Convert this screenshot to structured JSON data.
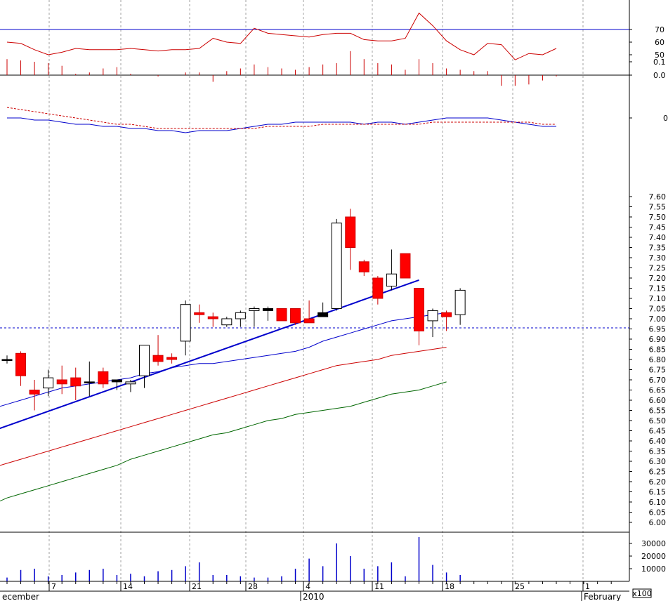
{
  "chart_data": [
    {
      "panel": "oscillator",
      "type": "line",
      "overbought_level": 70,
      "y_ticks": [
        "70",
        "60",
        "50"
      ],
      "series": [
        {
          "values": [
            60,
            59,
            54,
            50,
            52,
            55,
            54,
            54,
            54,
            55,
            54,
            53,
            54,
            54,
            55,
            63,
            60,
            59,
            71,
            67,
            66,
            65,
            64,
            66,
            67,
            67,
            62,
            61,
            61,
            63,
            83,
            73,
            61,
            54,
            50,
            59,
            58,
            46,
            51,
            50,
            55
          ],
          "color": "#cc0000"
        }
      ]
    },
    {
      "panel": "histogram",
      "type": "bar",
      "y_ticks": [
        "0.1",
        "0.0"
      ],
      "values": [
        0.12,
        0.11,
        0.1,
        0.09,
        0.07,
        0.01,
        0.02,
        0.05,
        0.06,
        0.01,
        0.0,
        -0.01,
        0.0,
        0.02,
        0.02,
        -0.05,
        0.03,
        0.05,
        0.08,
        0.06,
        0.05,
        0.04,
        0.06,
        0.08,
        0.09,
        0.18,
        0.12,
        0.09,
        0.08,
        0.04,
        0.12,
        0.09,
        0.05,
        0.04,
        0.03,
        0.03,
        -0.08,
        -0.08,
        -0.07,
        -0.04,
        -0.01
      ],
      "color": "#cc0000"
    },
    {
      "panel": "macd",
      "type": "line",
      "y_ticks": [
        "0.1"
      ],
      "series": [
        {
          "values": [
            0.1,
            0.1,
            0.09,
            0.09,
            0.08,
            0.07,
            0.07,
            0.06,
            0.06,
            0.05,
            0.05,
            0.04,
            0.04,
            0.03,
            0.04,
            0.04,
            0.04,
            0.05,
            0.06,
            0.07,
            0.07,
            0.08,
            0.08,
            0.08,
            0.08,
            0.08,
            0.07,
            0.08,
            0.08,
            0.07,
            0.08,
            0.09,
            0.1,
            0.1,
            0.1,
            0.1,
            0.09,
            0.08,
            0.07,
            0.06,
            0.06
          ],
          "color": "#0000cc",
          "style": "solid"
        },
        {
          "values": [
            0.15,
            0.14,
            0.13,
            0.12,
            0.11,
            0.1,
            0.09,
            0.08,
            0.07,
            0.07,
            0.06,
            0.05,
            0.05,
            0.05,
            0.05,
            0.05,
            0.05,
            0.05,
            0.05,
            0.06,
            0.06,
            0.06,
            0.06,
            0.07,
            0.07,
            0.07,
            0.07,
            0.07,
            0.07,
            0.07,
            0.07,
            0.08,
            0.08,
            0.08,
            0.08,
            0.08,
            0.08,
            0.08,
            0.08,
            0.07,
            0.07
          ],
          "color": "#cc0000",
          "style": "dashed"
        }
      ]
    },
    {
      "panel": "price",
      "type": "candlestick",
      "y_ticks": [
        "7.60",
        "7.55",
        "7.50",
        "7.45",
        "7.40",
        "7.35",
        "7.30",
        "7.25",
        "7.20",
        "7.15",
        "7.10",
        "7.05",
        "7.00",
        "6.95",
        "6.90",
        "6.85",
        "6.80",
        "6.75",
        "6.70",
        "6.65",
        "6.60",
        "6.55",
        "6.50",
        "6.45",
        "6.40",
        "6.35",
        "6.30",
        "6.25",
        "6.20",
        "6.15",
        "6.10",
        "6.05",
        "6.00"
      ],
      "ylim": [
        5.955,
        7.655
      ],
      "reference_level": 6.955,
      "candles": [
        {
          "o": 6.8,
          "h": 6.82,
          "l": 6.78,
          "c": 6.8,
          "color": "black"
        },
        {
          "o": 6.83,
          "h": 6.84,
          "l": 6.67,
          "c": 6.72,
          "color": "red"
        },
        {
          "o": 6.65,
          "h": 6.7,
          "l": 6.55,
          "c": 6.63,
          "color": "red"
        },
        {
          "o": 6.66,
          "h": 6.75,
          "l": 6.62,
          "c": 6.71,
          "color": "white"
        },
        {
          "o": 6.7,
          "h": 6.77,
          "l": 6.63,
          "c": 6.68,
          "color": "red"
        },
        {
          "o": 6.71,
          "h": 6.76,
          "l": 6.6,
          "c": 6.67,
          "color": "red"
        },
        {
          "o": 6.69,
          "h": 6.79,
          "l": 6.62,
          "c": 6.69,
          "color": "black"
        },
        {
          "o": 6.74,
          "h": 6.76,
          "l": 6.66,
          "c": 6.68,
          "color": "red"
        },
        {
          "o": 6.7,
          "h": 6.7,
          "l": 6.65,
          "c": 6.69,
          "color": "black"
        },
        {
          "o": 6.68,
          "h": 6.7,
          "l": 6.64,
          "c": 6.69,
          "color": "white"
        },
        {
          "o": 6.72,
          "h": 6.87,
          "l": 6.66,
          "c": 6.87,
          "color": "white"
        },
        {
          "o": 6.82,
          "h": 6.92,
          "l": 6.77,
          "c": 6.79,
          "color": "red"
        },
        {
          "o": 6.81,
          "h": 6.83,
          "l": 6.78,
          "c": 6.8,
          "color": "red"
        },
        {
          "o": 6.89,
          "h": 7.09,
          "l": 6.82,
          "c": 7.07,
          "color": "white"
        },
        {
          "o": 7.03,
          "h": 7.07,
          "l": 6.98,
          "c": 7.02,
          "color": "red"
        },
        {
          "o": 7.01,
          "h": 7.03,
          "l": 6.96,
          "c": 7.0,
          "color": "red"
        },
        {
          "o": 6.97,
          "h": 7.01,
          "l": 6.96,
          "c": 7.0,
          "color": "white"
        },
        {
          "o": 7.0,
          "h": 7.04,
          "l": 6.96,
          "c": 7.03,
          "color": "white"
        },
        {
          "o": 7.04,
          "h": 7.06,
          "l": 6.96,
          "c": 7.05,
          "color": "white"
        },
        {
          "o": 7.05,
          "h": 7.06,
          "l": 6.99,
          "c": 7.04,
          "color": "black"
        },
        {
          "o": 7.05,
          "h": 7.05,
          "l": 7.0,
          "c": 6.99,
          "color": "red"
        },
        {
          "o": 7.05,
          "h": 7.05,
          "l": 6.97,
          "c": 6.98,
          "color": "red"
        },
        {
          "o": 7.0,
          "h": 7.09,
          "l": 6.98,
          "c": 6.98,
          "color": "red"
        },
        {
          "o": 7.01,
          "h": 7.08,
          "l": 7.01,
          "c": 7.03,
          "color": "black"
        },
        {
          "o": 7.05,
          "h": 7.49,
          "l": 7.04,
          "c": 7.47,
          "color": "white"
        },
        {
          "o": 7.5,
          "h": 7.54,
          "l": 7.24,
          "c": 7.35,
          "color": "red"
        },
        {
          "o": 7.28,
          "h": 7.29,
          "l": 7.21,
          "c": 7.23,
          "color": "red"
        },
        {
          "o": 7.2,
          "h": 7.21,
          "l": 7.07,
          "c": 7.1,
          "color": "red"
        },
        {
          "o": 7.16,
          "h": 7.34,
          "l": 7.14,
          "c": 7.22,
          "color": "white"
        },
        {
          "o": 7.32,
          "h": 7.32,
          "l": 7.2,
          "c": 7.2,
          "color": "red"
        },
        {
          "o": 7.15,
          "h": 7.15,
          "l": 6.87,
          "c": 6.94,
          "color": "red"
        },
        {
          "o": 6.99,
          "h": 7.05,
          "l": 6.91,
          "c": 7.04,
          "color": "white"
        },
        {
          "o": 7.03,
          "h": 7.04,
          "l": 6.94,
          "c": 7.01,
          "color": "red"
        },
        {
          "o": 7.02,
          "h": 7.15,
          "l": 6.97,
          "c": 7.14,
          "color": "white"
        }
      ],
      "candle_slots": [
        0,
        1,
        2,
        3,
        4,
        5,
        6,
        7,
        8,
        9,
        10,
        11,
        12,
        13,
        14,
        15,
        16,
        17,
        18,
        19,
        20,
        21,
        22,
        23,
        24,
        25,
        26,
        27,
        28,
        29,
        30,
        31,
        32,
        33
      ],
      "series": [
        {
          "values": [
            6.56,
            6.58,
            6.6,
            6.62,
            6.64,
            6.66,
            6.67,
            6.68,
            6.69,
            6.7,
            6.71,
            6.73,
            6.74,
            6.76,
            6.77,
            6.78,
            6.78,
            6.79,
            6.8,
            6.81,
            6.82,
            6.83,
            6.84,
            6.86,
            6.89,
            6.91,
            6.93,
            6.95,
            6.97,
            6.99,
            7.0,
            7.01,
            7.02,
            7.03
          ],
          "color": "#0000cc"
        },
        {
          "values": [
            6.27,
            6.29,
            6.31,
            6.33,
            6.35,
            6.37,
            6.39,
            6.41,
            6.43,
            6.45,
            6.47,
            6.49,
            6.51,
            6.53,
            6.55,
            6.57,
            6.59,
            6.61,
            6.63,
            6.65,
            6.67,
            6.69,
            6.71,
            6.73,
            6.75,
            6.77,
            6.78,
            6.79,
            6.8,
            6.82,
            6.83,
            6.84,
            6.85,
            6.86
          ],
          "color": "#cc0000"
        },
        {
          "values": [
            6.09,
            6.12,
            6.14,
            6.16,
            6.18,
            6.2,
            6.22,
            6.24,
            6.26,
            6.28,
            6.31,
            6.33,
            6.35,
            6.37,
            6.39,
            6.41,
            6.43,
            6.44,
            6.46,
            6.48,
            6.5,
            6.51,
            6.53,
            6.54,
            6.55,
            6.56,
            6.57,
            6.59,
            6.61,
            6.63,
            6.64,
            6.65,
            6.67,
            6.69
          ],
          "color": "#006600"
        }
      ],
      "trendline": {
        "from": [
          0,
          6.45
        ],
        "to": [
          30,
          7.19
        ],
        "color": "#0000cc"
      }
    },
    {
      "panel": "volume",
      "type": "bar",
      "y_ticks": [
        "30000",
        "20000",
        "10000"
      ],
      "unit_label": "x100",
      "values": [
        3000,
        9000,
        10000,
        4000,
        5000,
        7000,
        9000,
        10000,
        5000,
        6000,
        4000,
        8000,
        9000,
        12000,
        15000,
        5000,
        5000,
        4000,
        3000,
        3000,
        4000,
        10000,
        18000,
        12000,
        30000,
        20000,
        10000,
        12000,
        15000,
        4000,
        35000,
        13000,
        7000,
        5000
      ],
      "color": "#0000cc"
    }
  ],
  "x_axis": {
    "week_labels": [
      "7",
      "14",
      "21",
      "28",
      "4",
      "11",
      "18",
      "25",
      "1"
    ],
    "month_labels": [
      "ecember",
      "2010",
      "February"
    ]
  }
}
